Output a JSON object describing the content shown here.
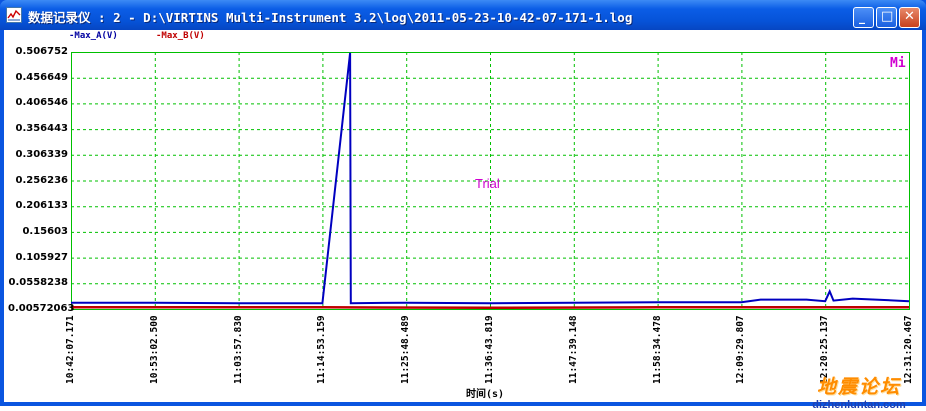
{
  "window": {
    "title": "数据记录仪 : 2 - D:\\VIRTINS Multi-Instrument 3.2\\log\\2011-05-23-10-42-07-171-1.log",
    "minimize_glyph": "_",
    "maximize_glyph": "□",
    "close_glyph": "✕"
  },
  "overlay": {
    "trial_text": "Trial",
    "mi_text": "Mi"
  },
  "watermark": {
    "cn": "地震论坛",
    "en": "dizhenluntan.com"
  },
  "colors": {
    "series_a": "#0000c0",
    "series_b": "#c00000",
    "grid": "#00c000",
    "plot_bg": "#ffffff",
    "titlebar": "#0653d8",
    "magenta": "#d000d0"
  },
  "chart_data": {
    "type": "line",
    "xlabel": "时间(s)",
    "ylabel": "",
    "legend": [
      "-Max_A(V)",
      "-Max_B(V)"
    ],
    "legend_placement": "top-left",
    "grid": true,
    "ylim": [
      0.00572063,
      0.506752
    ],
    "yticks": [
      "0.506752",
      "0.456649",
      "0.406546",
      "0.356443",
      "0.306339",
      "0.256236",
      "0.206133",
      "0.15603",
      "0.105927",
      "0.0558238",
      "0.00572063"
    ],
    "xticks": [
      "10:42:07.171",
      "10:53:02.500",
      "11:03:57.830",
      "11:14:53.159",
      "11:25:48.489",
      "11:36:43.819",
      "11:47:39.148",
      "11:58:34.478",
      "12:09:29.807",
      "12:20:25.137",
      "12:31:20.467"
    ],
    "x_range": [
      "10:42:07.171",
      "12:31:20.467"
    ],
    "series": [
      {
        "name": "Max_A(V)",
        "points": [
          [
            "10:42:07.171",
            0.018
          ],
          [
            "10:53:02.500",
            0.018
          ],
          [
            "11:03:57.830",
            0.017
          ],
          [
            "11:14:53.159",
            0.017
          ],
          [
            "11:18:30",
            0.505
          ],
          [
            "11:18:35",
            0.017
          ],
          [
            "11:25:48.489",
            0.018
          ],
          [
            "11:36:43.819",
            0.017
          ],
          [
            "11:47:39.148",
            0.018
          ],
          [
            "11:58:34.478",
            0.019
          ],
          [
            "12:09:29.807",
            0.019
          ],
          [
            "12:12:00",
            0.024
          ],
          [
            "12:18:00",
            0.024
          ],
          [
            "12:20:25.137",
            0.021
          ],
          [
            "12:21:00",
            0.04
          ],
          [
            "12:21:30",
            0.022
          ],
          [
            "12:24:00",
            0.026
          ],
          [
            "12:27:00",
            0.024
          ],
          [
            "12:31:20.467",
            0.021
          ]
        ]
      },
      {
        "name": "Max_B(V)",
        "points": [
          [
            "10:42:07.171",
            0.009
          ],
          [
            "11:14:53.159",
            0.009
          ],
          [
            "11:36:43.819",
            0.008
          ],
          [
            "11:58:34.478",
            0.009
          ],
          [
            "12:20:25.137",
            0.009
          ],
          [
            "12:31:20.467",
            0.009
          ]
        ]
      }
    ]
  }
}
